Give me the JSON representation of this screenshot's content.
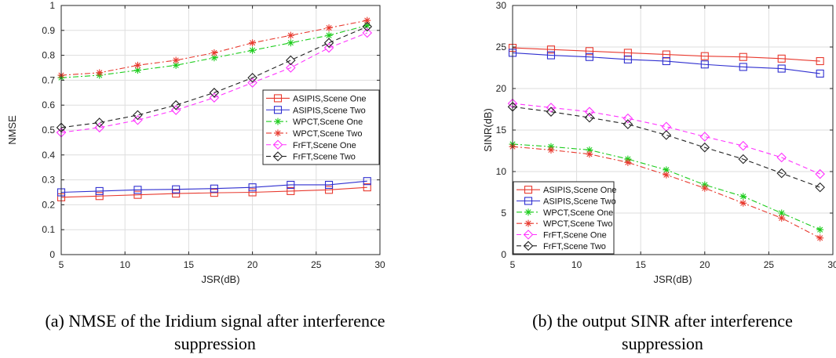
{
  "chart_data": [
    {
      "type": "line",
      "caption_lines": [
        "(a) NMSE of the Iridium signal after interference",
        "suppression"
      ],
      "xlabel": "JSR(dB)",
      "ylabel": "NMSE",
      "xlim": [
        5,
        30
      ],
      "ylim": [
        0,
        1
      ],
      "xticks": [
        5,
        10,
        15,
        20,
        25,
        30
      ],
      "yticks": [
        0,
        0.1,
        0.2,
        0.3,
        0.4,
        0.5,
        0.6,
        0.7,
        0.8,
        0.9,
        1
      ],
      "ytick_labels": [
        "0",
        "0.1",
        "0.2",
        "0.3",
        "0.4",
        "0.5",
        "0.6",
        "0.7",
        "0.8",
        "0.9",
        "1"
      ],
      "grid": true,
      "legend_position": "center-right",
      "x": [
        5,
        8,
        11,
        14,
        17,
        20,
        23,
        26,
        29
      ],
      "series": [
        {
          "name": "ASIPIS,Scene One",
          "color": "#e8392e",
          "marker": "square",
          "dash": "solid",
          "values": [
            0.23,
            0.235,
            0.24,
            0.245,
            0.248,
            0.25,
            0.255,
            0.26,
            0.27
          ]
        },
        {
          "name": "ASIPIS,Scene Two",
          "color": "#2f2fd0",
          "marker": "square",
          "dash": "solid",
          "values": [
            0.25,
            0.255,
            0.26,
            0.262,
            0.265,
            0.27,
            0.28,
            0.28,
            0.295
          ]
        },
        {
          "name": "WPCT,Scene One",
          "color": "#1bcc1b",
          "marker": "asterisk",
          "dash": "dashdot",
          "values": [
            0.71,
            0.72,
            0.74,
            0.76,
            0.79,
            0.82,
            0.85,
            0.88,
            0.92
          ]
        },
        {
          "name": "WPCT,Scene Two",
          "color": "#e8392e",
          "marker": "asterisk",
          "dash": "dashdot",
          "values": [
            0.72,
            0.73,
            0.76,
            0.78,
            0.81,
            0.85,
            0.88,
            0.91,
            0.94
          ]
        },
        {
          "name": "FrFT,Scene One",
          "color": "#ff33ff",
          "marker": "diamond",
          "dash": "dashed",
          "values": [
            0.49,
            0.51,
            0.54,
            0.58,
            0.63,
            0.69,
            0.75,
            0.83,
            0.89
          ]
        },
        {
          "name": "FrFT,Scene Two",
          "color": "#222222",
          "marker": "diamond",
          "dash": "dashed",
          "values": [
            0.51,
            0.53,
            0.56,
            0.6,
            0.65,
            0.71,
            0.78,
            0.85,
            0.915
          ]
        }
      ]
    },
    {
      "type": "line",
      "caption_lines": [
        "(b) the output SINR after interference",
        "suppression"
      ],
      "xlabel": "JSR(dB)",
      "ylabel": "SINR(dB)",
      "xlim": [
        5,
        30
      ],
      "ylim": [
        0,
        30
      ],
      "xticks": [
        5,
        10,
        15,
        20,
        25,
        30
      ],
      "yticks": [
        0,
        5,
        10,
        15,
        20,
        25,
        30
      ],
      "ytick_labels": [
        "0",
        "5",
        "10",
        "15",
        "20",
        "25",
        "30"
      ],
      "grid": true,
      "legend_position": "bottom-left",
      "x": [
        5,
        8,
        11,
        14,
        17,
        20,
        23,
        26,
        29
      ],
      "series": [
        {
          "name": "ASIPIS,Scene One",
          "color": "#e8392e",
          "marker": "square",
          "dash": "solid",
          "values": [
            24.9,
            24.7,
            24.5,
            24.3,
            24.1,
            23.9,
            23.8,
            23.6,
            23.3
          ]
        },
        {
          "name": "ASIPIS,Scene Two",
          "color": "#2f2fd0",
          "marker": "square",
          "dash": "solid",
          "values": [
            24.3,
            24.0,
            23.8,
            23.5,
            23.3,
            22.9,
            22.6,
            22.4,
            21.8
          ]
        },
        {
          "name": "WPCT,Scene One",
          "color": "#1bcc1b",
          "marker": "asterisk",
          "dash": "dashdot",
          "values": [
            13.3,
            13.0,
            12.6,
            11.5,
            10.2,
            8.4,
            7.0,
            5.0,
            3.0
          ]
        },
        {
          "name": "WPCT,Scene Two",
          "color": "#e8392e",
          "marker": "asterisk",
          "dash": "dashdot",
          "values": [
            13.0,
            12.6,
            12.1,
            11.1,
            9.6,
            8.0,
            6.2,
            4.4,
            2.0
          ]
        },
        {
          "name": "FrFT,Scene One",
          "color": "#ff33ff",
          "marker": "diamond",
          "dash": "dashed",
          "values": [
            18.2,
            17.7,
            17.2,
            16.4,
            15.4,
            14.2,
            13.1,
            11.7,
            9.7
          ]
        },
        {
          "name": "FrFT,Scene Two",
          "color": "#222222",
          "marker": "diamond",
          "dash": "dashed",
          "values": [
            17.8,
            17.2,
            16.5,
            15.7,
            14.4,
            12.9,
            11.5,
            9.8,
            8.1
          ]
        }
      ]
    }
  ]
}
